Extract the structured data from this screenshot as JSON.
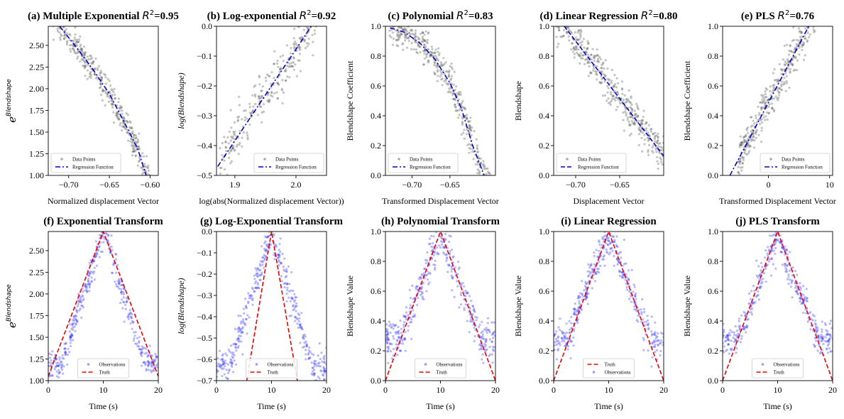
{
  "figure": {
    "panels": [
      {
        "id": "a",
        "title": "(a) Multiple Exponential R²=0.95",
        "xlabel": "Normalized displacement Vector",
        "ylabel": "e^Blendshape"
      },
      {
        "id": "b",
        "title": "(b) Log-exponential R²=0.92",
        "xlabel": "log(abs(Normalized displacement Vector))",
        "ylabel": "log(Blendshape)"
      },
      {
        "id": "c",
        "title": "(c) Polynomial R²=0.83",
        "xlabel": "Transformed Displacement Vector",
        "ylabel": "Blendshape Coefficient"
      },
      {
        "id": "d",
        "title": "(d) Linear Regression R²=0.80",
        "xlabel": "Displacement Vector",
        "ylabel": "Blendshape"
      },
      {
        "id": "e",
        "title": "(e) PLS R²=0.76",
        "xlabel": "Transformed Displacement Vector",
        "ylabel": "Blendshape Coefficient"
      },
      {
        "id": "f",
        "title": "(f) Exponential Transform",
        "xlabel": "Time (s)",
        "ylabel": "e^Blendshape"
      },
      {
        "id": "g",
        "title": "(g) Log-Exponential Transform",
        "xlabel": "Time (s)",
        "ylabel": "log(Blendshape)"
      },
      {
        "id": "h",
        "title": "(h) Polynomial Transform",
        "xlabel": "Time (s)",
        "ylabel": "Blendshape Value"
      },
      {
        "id": "i",
        "title": "(i) Linear Regression",
        "xlabel": "Time (s)",
        "ylabel": "Blendshape Value"
      },
      {
        "id": "j",
        "title": "(j) PLS Transform",
        "xlabel": "Time (s)",
        "ylabel": "Blendshape Value"
      }
    ]
  },
  "chart_data": [
    {
      "panel": "a",
      "type": "scatter",
      "title": "(a) Multiple Exponential R²=0.95",
      "xlabel": "Normalized displacement Vector",
      "ylabel": "e^Blendshape",
      "xlim": [
        -0.725,
        -0.59
      ],
      "ylim": [
        1.0,
        2.72
      ],
      "xticks": [
        -0.7,
        -0.65,
        -0.6
      ],
      "xtick_labels": [
        "−0.70",
        "−0.65",
        "−0.60"
      ],
      "yticks": [
        1.0,
        1.25,
        1.5,
        1.75,
        2.0,
        2.25,
        2.5
      ],
      "ytick_labels": [
        "1.00",
        "1.25",
        "1.50",
        "1.75",
        "2.00",
        "2.25",
        "2.50"
      ],
      "legend": {
        "position": "lower-left",
        "entries": [
          "Data Points",
          "Regression Function"
        ]
      },
      "scatter_color": "#555555",
      "line_color": "#0000cc",
      "line_style": "dashdot",
      "scatter": {
        "x_range": [
          -0.72,
          -0.595
        ],
        "fit": "exp_decline",
        "n": 420,
        "noise": 0.08
      },
      "series": [
        {
          "name": "Regression Function",
          "points": [
            [
              -0.711,
              2.72
            ],
            [
              -0.69,
              2.47
            ],
            [
              -0.67,
              2.22
            ],
            [
              -0.65,
              1.94
            ],
            [
              -0.63,
              1.58
            ],
            [
              -0.615,
              1.3
            ],
            [
              -0.605,
              1.0
            ]
          ]
        }
      ]
    },
    {
      "panel": "b",
      "type": "scatter",
      "title": "(b) Log-exponential R²=0.92",
      "xlabel": "log(abs(Normalized displacement Vector))",
      "ylabel": "log(Blendshape)",
      "xlim": [
        1.87,
        2.05
      ],
      "ylim": [
        -0.5,
        0.0
      ],
      "xticks": [
        1.9,
        2.0
      ],
      "xtick_labels": [
        "1.9",
        "2.0"
      ],
      "yticks": [
        -0.5,
        -0.4,
        -0.3,
        -0.2,
        -0.1,
        0.0
      ],
      "ytick_labels": [
        "−0.5",
        "−0.4",
        "−0.3",
        "−0.2",
        "−0.1",
        "0.0"
      ],
      "legend": {
        "position": "lower-right",
        "entries": [
          "Data Points",
          "Regression Function"
        ]
      },
      "scatter_color": "#555555",
      "line_color": "#0000cc",
      "line_style": "dashdot",
      "scatter": {
        "x_range": [
          1.875,
          2.05
        ],
        "fit": "linear",
        "n": 300,
        "noise": 0.04
      },
      "series": [
        {
          "name": "Regression Function",
          "points": [
            [
              1.872,
              -0.47
            ],
            [
              2.025,
              0.0
            ]
          ]
        }
      ]
    },
    {
      "panel": "c",
      "type": "scatter",
      "title": "(c) Polynomial R²=0.83",
      "xlabel": "Transformed Displacement Vector",
      "ylabel": "Blendshape Coefficient",
      "xlim": [
        -0.735,
        -0.59
      ],
      "ylim": [
        0.0,
        1.0
      ],
      "xticks": [
        -0.7,
        -0.65
      ],
      "xtick_labels": [
        "−0.70",
        "−0.65"
      ],
      "yticks": [
        0.0,
        0.2,
        0.4,
        0.6,
        0.8,
        1.0
      ],
      "ytick_labels": [
        "0.0",
        "0.2",
        "0.4",
        "0.6",
        "0.8",
        "1.0"
      ],
      "legend": {
        "position": "lower-left",
        "entries": [
          "Data Points",
          "Regression Function"
        ]
      },
      "scatter_color": "#555555",
      "line_color": "#0000cc",
      "line_style": "dashdot",
      "scatter": {
        "x_range": [
          -0.73,
          -0.595
        ],
        "fit": "curve",
        "n": 420,
        "noise": 0.06
      },
      "series": [
        {
          "name": "Regression Function",
          "points": [
            [
              -0.729,
              0.99
            ],
            [
              -0.71,
              0.96
            ],
            [
              -0.69,
              0.89
            ],
            [
              -0.67,
              0.78
            ],
            [
              -0.65,
              0.62
            ],
            [
              -0.635,
              0.45
            ],
            [
              -0.62,
              0.2
            ],
            [
              -0.605,
              0.0
            ]
          ]
        }
      ]
    },
    {
      "panel": "d",
      "type": "scatter",
      "title": "(d) Linear Regression R²=0.80",
      "xlabel": "Displacement Vector",
      "ylabel": "Blendshape",
      "xlim": [
        -0.725,
        -0.6
      ],
      "ylim": [
        0.0,
        1.0
      ],
      "xticks": [
        -0.7,
        -0.65
      ],
      "xtick_labels": [
        "−0.70",
        "−0.65"
      ],
      "yticks": [
        0.0,
        0.2,
        0.4,
        0.6,
        0.8,
        1.0
      ],
      "ytick_labels": [
        "0.0",
        "0.2",
        "0.4",
        "0.6",
        "0.8",
        "1.0"
      ],
      "legend": {
        "position": "lower-left",
        "entries": [
          "Data Points",
          "Regression Function"
        ]
      },
      "scatter_color": "#555555",
      "line_color": "#0000cc",
      "line_style": "dashed",
      "scatter": {
        "x_range": [
          -0.725,
          -0.6
        ],
        "fit": "linear",
        "n": 420,
        "noise": 0.06
      },
      "series": [
        {
          "name": "Regression Function",
          "points": [
            [
              -0.713,
              1.0
            ],
            [
              -0.6,
              0.13
            ]
          ]
        }
      ]
    },
    {
      "panel": "e",
      "type": "scatter",
      "title": "(e) PLS R²=0.76",
      "xlabel": "Transformed Displacement Vector",
      "ylabel": "Blendshape Coefficient",
      "xlim": [
        -7.5,
        10.5
      ],
      "ylim": [
        0.0,
        1.0
      ],
      "xticks": [
        0,
        10
      ],
      "xtick_labels": [
        "0",
        "10"
      ],
      "yticks": [
        0.0,
        0.2,
        0.4,
        0.6,
        0.8,
        1.0
      ],
      "ytick_labels": [
        "0.0",
        "0.2",
        "0.4",
        "0.6",
        "0.8",
        "1.0"
      ],
      "legend": {
        "position": "lower-right",
        "entries": [
          "Data Points",
          "Regression Function"
        ]
      },
      "scatter_color": "#555555",
      "line_color": "#0000cc",
      "line_style": "dashdot",
      "scatter": {
        "x_range": [
          -5,
          10
        ],
        "fit": "linear_clip",
        "n": 420,
        "noise": 0.07
      },
      "series": [
        {
          "name": "Regression Function",
          "points": [
            [
              -6.3,
              0.0
            ],
            [
              6.6,
              1.0
            ]
          ]
        }
      ]
    },
    {
      "panel": "f",
      "type": "scatter",
      "title": "(f) Exponential Transform",
      "xlabel": "Time (s)",
      "ylabel": "e^Blendshape",
      "xlim": [
        0,
        20
      ],
      "ylim": [
        1.0,
        2.72
      ],
      "xticks": [
        0,
        10,
        20
      ],
      "xtick_labels": [
        "0",
        "10",
        "20"
      ],
      "yticks": [
        1.0,
        1.25,
        1.5,
        1.75,
        2.0,
        2.25,
        2.5
      ],
      "ytick_labels": [
        "1.00",
        "1.25",
        "1.50",
        "1.75",
        "2.00",
        "2.25",
        "2.50"
      ],
      "legend": {
        "position": "lower-center",
        "entries": [
          "Observations",
          "Truth"
        ]
      },
      "scatter_color": "#3333ff",
      "line_color": "#ee0000",
      "line_style": "dashed",
      "scatter": {
        "peak": 2.72,
        "base": 1.2,
        "n": 400,
        "noise": 0.08
      },
      "series": [
        {
          "name": "Truth",
          "points": [
            [
              0,
              1.05
            ],
            [
              10,
              2.72
            ],
            [
              20,
              1.05
            ]
          ]
        }
      ]
    },
    {
      "panel": "g",
      "type": "scatter",
      "title": "(g) Log-Exponential Transform",
      "xlabel": "Time (s)",
      "ylabel": "log(Blendshape)",
      "xlim": [
        0,
        20
      ],
      "ylim": [
        -0.7,
        0.0
      ],
      "xticks": [
        0,
        10,
        20
      ],
      "xtick_labels": [
        "0",
        "10",
        "20"
      ],
      "yticks": [
        -0.7,
        -0.6,
        -0.5,
        -0.4,
        -0.3,
        -0.2,
        -0.1,
        0.0
      ],
      "ytick_labels": [
        "−0.7",
        "−0.6",
        "−0.5",
        "−0.4",
        "−0.3",
        "−0.2",
        "−0.1",
        "0.0"
      ],
      "legend": {
        "position": "lower-center",
        "entries": [
          "Observations",
          "Truth"
        ]
      },
      "scatter_color": "#3333ff",
      "line_color": "#ee0000",
      "line_style": "dashed",
      "scatter": {
        "peak": 0.0,
        "base": -0.63,
        "n": 400,
        "noise": 0.04
      },
      "series": [
        {
          "name": "Truth",
          "points": [
            [
              5.5,
              -0.7
            ],
            [
              10,
              0.0
            ],
            [
              14.7,
              -0.7
            ]
          ]
        }
      ]
    },
    {
      "panel": "h",
      "type": "scatter",
      "title": "(h) Polynomial Transform",
      "xlabel": "Time (s)",
      "ylabel": "Blendshape Value",
      "xlim": [
        0,
        20
      ],
      "ylim": [
        0.0,
        1.0
      ],
      "xticks": [
        0,
        10,
        20
      ],
      "xtick_labels": [
        "0",
        "10",
        "20"
      ],
      "yticks": [
        0.0,
        0.2,
        0.4,
        0.6,
        0.8,
        1.0
      ],
      "ytick_labels": [
        "0.0",
        "0.2",
        "0.4",
        "0.6",
        "0.8",
        "1.0"
      ],
      "legend": {
        "position": "lower-center",
        "entries": [
          "Observations",
          "Truth"
        ]
      },
      "scatter_color": "#3333ff",
      "line_color": "#ee0000",
      "line_style": "dashed",
      "scatter": {
        "peak": 0.97,
        "base": 0.27,
        "n": 400,
        "noise": 0.07
      },
      "series": [
        {
          "name": "Truth",
          "points": [
            [
              0,
              0.0
            ],
            [
              10,
              1.0
            ],
            [
              20,
              0.0
            ]
          ]
        }
      ]
    },
    {
      "panel": "i",
      "type": "scatter",
      "title": "(i) Linear Regression",
      "xlabel": "Time (s)",
      "ylabel": "Blendshape Value",
      "xlim": [
        0,
        20
      ],
      "ylim": [
        0.0,
        1.0
      ],
      "xticks": [
        0,
        10,
        20
      ],
      "xtick_labels": [
        "0",
        "10",
        "20"
      ],
      "yticks": [
        0.0,
        0.2,
        0.4,
        0.6,
        0.8,
        1.0
      ],
      "ytick_labels": [
        "0.0",
        "0.2",
        "0.4",
        "0.6",
        "0.8",
        "1.0"
      ],
      "legend": {
        "position": "lower-center",
        "entries": [
          "Truth",
          "Observations"
        ]
      },
      "scatter_color": "#3333ff",
      "line_color": "#ee0000",
      "line_style": "dashed",
      "scatter": {
        "peak": 0.98,
        "base": 0.28,
        "n": 400,
        "noise": 0.06
      },
      "series": [
        {
          "name": "Truth",
          "points": [
            [
              0,
              0.0
            ],
            [
              10,
              1.0
            ],
            [
              20,
              0.0
            ]
          ]
        }
      ]
    },
    {
      "panel": "j",
      "type": "scatter",
      "title": "(j) PLS Transform",
      "xlabel": "Time (s)",
      "ylabel": "Blendshape Value",
      "xlim": [
        0,
        20
      ],
      "ylim": [
        0.0,
        1.0
      ],
      "xticks": [
        0,
        10,
        20
      ],
      "xtick_labels": [
        "0",
        "10",
        "20"
      ],
      "yticks": [
        0.0,
        0.2,
        0.4,
        0.6,
        0.8,
        1.0
      ],
      "ytick_labels": [
        "0.0",
        "0.2",
        "0.4",
        "0.6",
        "0.8",
        "1.0"
      ],
      "legend": {
        "position": "lower-center",
        "entries": [
          "Observations",
          "Truth"
        ]
      },
      "scatter_color": "#3333ff",
      "line_color": "#ee0000",
      "line_style": "dashed",
      "scatter": {
        "peak": 0.95,
        "base": 0.28,
        "n": 400,
        "noise": 0.06
      },
      "series": [
        {
          "name": "Truth",
          "points": [
            [
              0,
              0.0
            ],
            [
              10,
              1.0
            ],
            [
              20,
              0.0
            ]
          ]
        }
      ]
    }
  ]
}
